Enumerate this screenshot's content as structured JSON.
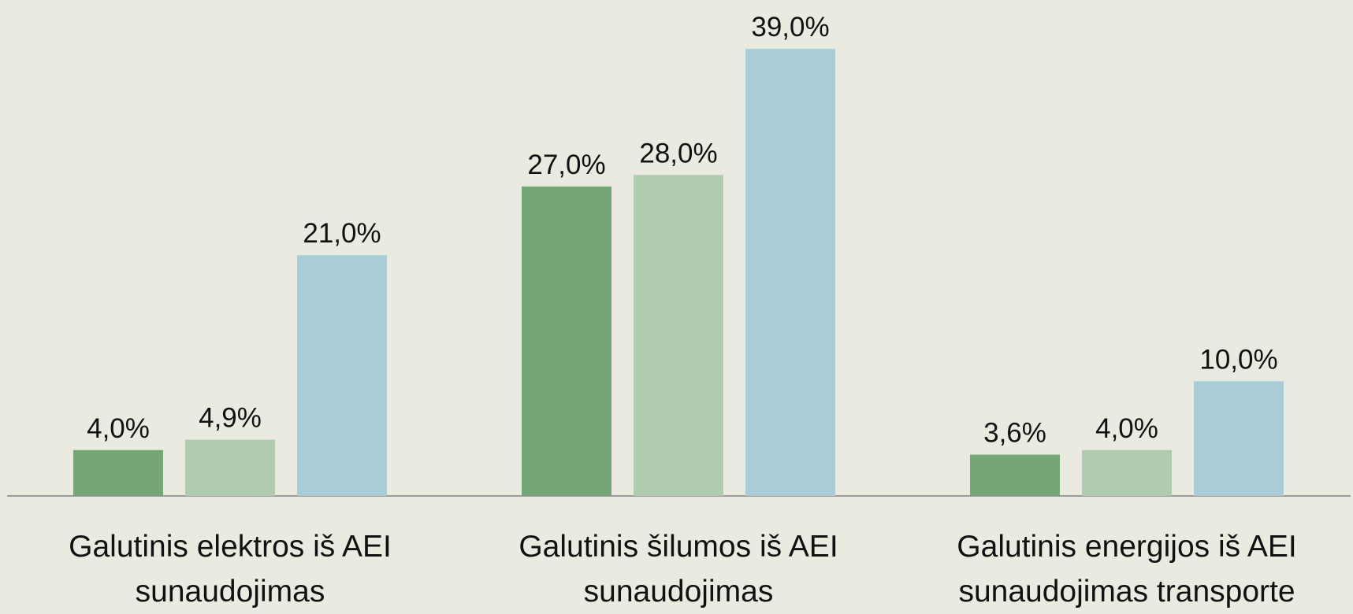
{
  "chart_data": {
    "type": "bar",
    "categories": [
      "Galutinis elektros iš AEI sunaudojimas",
      "Galutinis šilumos iš AEI sunaudojimas",
      "Galutinis energijos iš AEI sunaudojimas transporte"
    ],
    "series": [
      {
        "color": "#74a678",
        "values": [
          4.0,
          27.0,
          3.6
        ],
        "value_labels": [
          "4,0%",
          "27,0%",
          "3,6%"
        ]
      },
      {
        "color": "#b0cbb0",
        "values": [
          4.9,
          28.0,
          4.0
        ],
        "value_labels": [
          "4,9%",
          "28,0%",
          "4,0%"
        ]
      },
      {
        "color": "#a8cdd8",
        "values": [
          21.0,
          39.0,
          10.0
        ],
        "value_labels": [
          "21,0%",
          "39,0%",
          "10,0%"
        ]
      }
    ]
  }
}
